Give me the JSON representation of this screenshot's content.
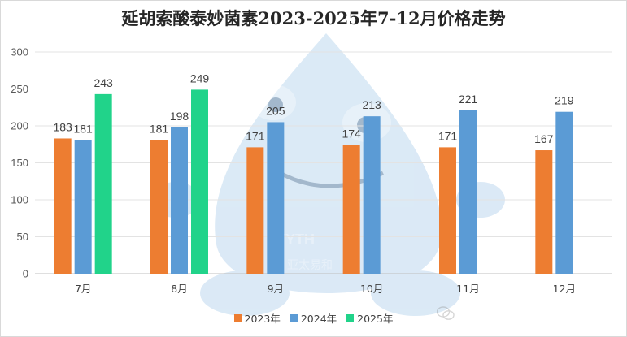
{
  "chart_data": {
    "type": "bar",
    "title": "延胡索酸泰妙菌素2023-2025年7-12月价格走势",
    "categories": [
      "7月",
      "8月",
      "9月",
      "10月",
      "11月",
      "12月"
    ],
    "series": [
      {
        "name": "2023年",
        "color": "#ed7d31",
        "values": [
          183,
          181,
          171,
          174,
          171,
          167
        ]
      },
      {
        "name": "2024年",
        "color": "#5b9bd5",
        "values": [
          181,
          198,
          205,
          213,
          221,
          219
        ]
      },
      {
        "name": "2025年",
        "color": "#21d38a",
        "values": [
          243,
          249,
          null,
          null,
          null,
          null
        ]
      }
    ],
    "ylim": [
      0,
      300
    ],
    "yticks": [
      0,
      50,
      100,
      150,
      200,
      250,
      300
    ],
    "grid": true,
    "legend_position": "bottom"
  },
  "watermark": {
    "text": "YYTH",
    "subtext": "亚太易和",
    "icon": "wechat-icon",
    "color": "#7fb3e0"
  }
}
